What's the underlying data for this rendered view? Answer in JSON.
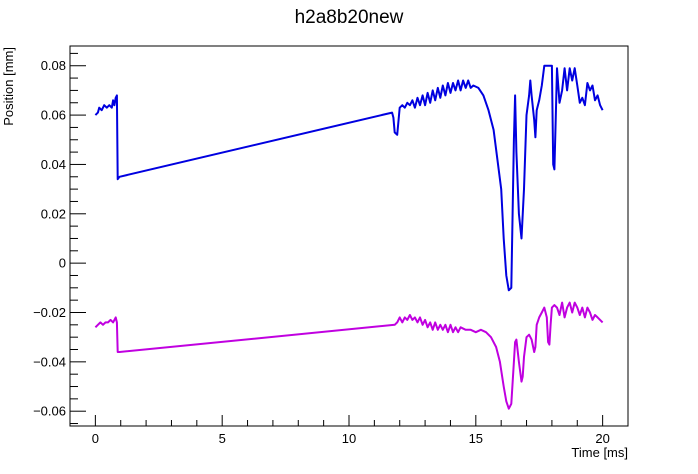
{
  "chart_data": {
    "type": "line",
    "title": "h2a8b20new",
    "xlabel": "Time [ms]",
    "ylabel": "Position [mm]",
    "xlim": [
      -1,
      21
    ],
    "ylim": [
      -0.066,
      0.088
    ],
    "x_ticks": [
      0,
      5,
      10,
      15,
      20
    ],
    "x_tick_labels": [
      "0",
      "5",
      "10",
      "15",
      "20"
    ],
    "y_ticks": [
      -0.06,
      -0.04,
      -0.02,
      0,
      0.02,
      0.04,
      0.06,
      0.08
    ],
    "y_tick_labels": [
      "−0.06",
      "−0.04",
      "−0.02",
      "0",
      "0.02",
      "0.04",
      "0.06",
      "0.08"
    ],
    "grid": false,
    "legend": "none",
    "series": [
      {
        "color": "#0000e0",
        "points": [
          [
            0.0,
            0.06
          ],
          [
            0.1,
            0.061
          ],
          [
            0.15,
            0.063
          ],
          [
            0.25,
            0.062
          ],
          [
            0.35,
            0.064
          ],
          [
            0.45,
            0.063
          ],
          [
            0.55,
            0.064
          ],
          [
            0.65,
            0.063
          ],
          [
            0.7,
            0.066
          ],
          [
            0.75,
            0.064
          ],
          [
            0.8,
            0.067
          ],
          [
            0.85,
            0.068
          ],
          [
            0.88,
            0.034
          ],
          [
            0.95,
            0.035
          ],
          [
            11.7,
            0.061
          ],
          [
            11.75,
            0.059
          ],
          [
            11.8,
            0.053
          ],
          [
            11.9,
            0.052
          ],
          [
            12.0,
            0.063
          ],
          [
            12.1,
            0.064
          ],
          [
            12.2,
            0.063
          ],
          [
            12.3,
            0.065
          ],
          [
            12.4,
            0.064
          ],
          [
            12.5,
            0.066
          ],
          [
            12.6,
            0.063
          ],
          [
            12.7,
            0.067
          ],
          [
            12.8,
            0.064
          ],
          [
            12.9,
            0.068
          ],
          [
            13.0,
            0.064
          ],
          [
            13.1,
            0.069
          ],
          [
            13.2,
            0.065
          ],
          [
            13.3,
            0.07
          ],
          [
            13.4,
            0.066
          ],
          [
            13.5,
            0.071
          ],
          [
            13.6,
            0.067
          ],
          [
            13.7,
            0.072
          ],
          [
            13.8,
            0.068
          ],
          [
            13.9,
            0.073
          ],
          [
            14.0,
            0.069
          ],
          [
            14.1,
            0.073
          ],
          [
            14.2,
            0.07
          ],
          [
            14.3,
            0.074
          ],
          [
            14.4,
            0.07
          ],
          [
            14.5,
            0.074
          ],
          [
            14.6,
            0.071
          ],
          [
            14.7,
            0.074
          ],
          [
            14.8,
            0.071
          ],
          [
            14.9,
            0.072
          ],
          [
            15.1,
            0.071
          ],
          [
            15.3,
            0.068
          ],
          [
            15.5,
            0.062
          ],
          [
            15.7,
            0.054
          ],
          [
            15.85,
            0.042
          ],
          [
            16.0,
            0.03
          ],
          [
            16.1,
            0.01
          ],
          [
            16.2,
            -0.005
          ],
          [
            16.3,
            -0.011
          ],
          [
            16.4,
            -0.01
          ],
          [
            16.45,
            0.02
          ],
          [
            16.5,
            0.05
          ],
          [
            16.55,
            0.068
          ],
          [
            16.6,
            0.045
          ],
          [
            16.7,
            0.02
          ],
          [
            16.8,
            0.01
          ],
          [
            16.9,
            0.03
          ],
          [
            17.0,
            0.06
          ],
          [
            17.1,
            0.068
          ],
          [
            17.15,
            0.074
          ],
          [
            17.2,
            0.068
          ],
          [
            17.3,
            0.058
          ],
          [
            17.35,
            0.051
          ],
          [
            17.4,
            0.062
          ],
          [
            17.5,
            0.066
          ],
          [
            17.6,
            0.072
          ],
          [
            17.7,
            0.08
          ],
          [
            17.8,
            0.08
          ],
          [
            18.0,
            0.08
          ],
          [
            18.05,
            0.04
          ],
          [
            18.1,
            0.038
          ],
          [
            18.15,
            0.058
          ],
          [
            18.2,
            0.079
          ],
          [
            18.3,
            0.065
          ],
          [
            18.4,
            0.07
          ],
          [
            18.5,
            0.079
          ],
          [
            18.6,
            0.07
          ],
          [
            18.7,
            0.079
          ],
          [
            18.8,
            0.074
          ],
          [
            18.9,
            0.079
          ],
          [
            19.0,
            0.072
          ],
          [
            19.1,
            0.065
          ],
          [
            19.2,
            0.067
          ],
          [
            19.3,
            0.064
          ],
          [
            19.4,
            0.073
          ],
          [
            19.5,
            0.07
          ],
          [
            19.6,
            0.072
          ],
          [
            19.7,
            0.066
          ],
          [
            19.8,
            0.068
          ],
          [
            19.9,
            0.064
          ],
          [
            20.0,
            0.062
          ]
        ]
      },
      {
        "color": "#c000e0",
        "points": [
          [
            0.0,
            -0.026
          ],
          [
            0.1,
            -0.025
          ],
          [
            0.2,
            -0.024
          ],
          [
            0.3,
            -0.025
          ],
          [
            0.4,
            -0.024
          ],
          [
            0.5,
            -0.024
          ],
          [
            0.6,
            -0.023
          ],
          [
            0.7,
            -0.024
          ],
          [
            0.8,
            -0.022
          ],
          [
            0.85,
            -0.024
          ],
          [
            0.88,
            -0.036
          ],
          [
            0.95,
            -0.036
          ],
          [
            11.8,
            -0.025
          ],
          [
            11.9,
            -0.024
          ],
          [
            12.0,
            -0.022
          ],
          [
            12.1,
            -0.024
          ],
          [
            12.2,
            -0.022
          ],
          [
            12.3,
            -0.023
          ],
          [
            12.4,
            -0.021
          ],
          [
            12.5,
            -0.023
          ],
          [
            12.6,
            -0.022
          ],
          [
            12.7,
            -0.024
          ],
          [
            12.8,
            -0.022
          ],
          [
            12.9,
            -0.025
          ],
          [
            13.0,
            -0.023
          ],
          [
            13.1,
            -0.026
          ],
          [
            13.2,
            -0.024
          ],
          [
            13.3,
            -0.027
          ],
          [
            13.4,
            -0.024
          ],
          [
            13.5,
            -0.027
          ],
          [
            13.6,
            -0.025
          ],
          [
            13.7,
            -0.027
          ],
          [
            13.8,
            -0.025
          ],
          [
            13.9,
            -0.028
          ],
          [
            14.0,
            -0.025
          ],
          [
            14.1,
            -0.028
          ],
          [
            14.2,
            -0.026
          ],
          [
            14.3,
            -0.028
          ],
          [
            14.4,
            -0.026
          ],
          [
            14.6,
            -0.027
          ],
          [
            14.8,
            -0.027
          ],
          [
            15.0,
            -0.028
          ],
          [
            15.2,
            -0.027
          ],
          [
            15.4,
            -0.028
          ],
          [
            15.6,
            -0.03
          ],
          [
            15.8,
            -0.034
          ],
          [
            15.95,
            -0.04
          ],
          [
            16.1,
            -0.05
          ],
          [
            16.2,
            -0.056
          ],
          [
            16.3,
            -0.059
          ],
          [
            16.4,
            -0.057
          ],
          [
            16.5,
            -0.04
          ],
          [
            16.55,
            -0.032
          ],
          [
            16.6,
            -0.031
          ],
          [
            16.7,
            -0.04
          ],
          [
            16.8,
            -0.048
          ],
          [
            16.85,
            -0.046
          ],
          [
            16.9,
            -0.038
          ],
          [
            17.0,
            -0.03
          ],
          [
            17.1,
            -0.029
          ],
          [
            17.2,
            -0.031
          ],
          [
            17.3,
            -0.036
          ],
          [
            17.35,
            -0.034
          ],
          [
            17.4,
            -0.025
          ],
          [
            17.5,
            -0.022
          ],
          [
            17.6,
            -0.02
          ],
          [
            17.7,
            -0.018
          ],
          [
            17.8,
            -0.022
          ],
          [
            17.85,
            -0.032
          ],
          [
            17.9,
            -0.033
          ],
          [
            17.95,
            -0.025
          ],
          [
            18.0,
            -0.018
          ],
          [
            18.1,
            -0.017
          ],
          [
            18.2,
            -0.018
          ],
          [
            18.3,
            -0.021
          ],
          [
            18.4,
            -0.016
          ],
          [
            18.5,
            -0.022
          ],
          [
            18.6,
            -0.018
          ],
          [
            18.7,
            -0.016
          ],
          [
            18.8,
            -0.02
          ],
          [
            18.9,
            -0.016
          ],
          [
            19.0,
            -0.018
          ],
          [
            19.1,
            -0.021
          ],
          [
            19.2,
            -0.018
          ],
          [
            19.3,
            -0.022
          ],
          [
            19.4,
            -0.018
          ],
          [
            19.5,
            -0.02
          ],
          [
            19.6,
            -0.023
          ],
          [
            19.7,
            -0.021
          ],
          [
            19.8,
            -0.022
          ],
          [
            19.9,
            -0.023
          ],
          [
            20.0,
            -0.024
          ]
        ]
      }
    ]
  }
}
